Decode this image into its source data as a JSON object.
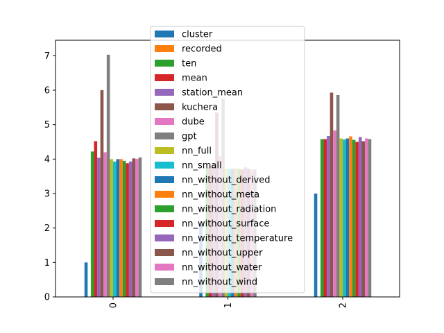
{
  "chart_data": {
    "type": "bar",
    "title": "",
    "xlabel": "",
    "ylabel": "",
    "categories": [
      "0",
      "1",
      "2"
    ],
    "ylim": [
      0,
      7.45
    ],
    "yticks": [
      0,
      1,
      2,
      3,
      4,
      5,
      6,
      7
    ],
    "grid": false,
    "legend_position": "upper center",
    "series": [
      {
        "name": "cluster",
        "color": "#1f77b4",
        "values": [
          1.0,
          2.15,
          3.0
        ]
      },
      {
        "name": "recorded",
        "color": "#ff7f0e",
        "values": [
          0,
          0,
          0
        ]
      },
      {
        "name": "ten",
        "color": "#2ca02c",
        "values": [
          4.22,
          3.75,
          4.58
        ]
      },
      {
        "name": "mean",
        "color": "#d62728",
        "values": [
          4.52,
          3.8,
          4.58
        ]
      },
      {
        "name": "station_mean",
        "color": "#9467bd",
        "values": [
          4.04,
          3.8,
          4.67
        ]
      },
      {
        "name": "kuchera",
        "color": "#8c564b",
        "values": [
          6.0,
          5.35,
          5.93
        ]
      },
      {
        "name": "dube",
        "color": "#e377c2",
        "values": [
          4.2,
          4.08,
          4.83
        ]
      },
      {
        "name": "gpt",
        "color": "#7f7f7f",
        "values": [
          7.03,
          5.75,
          5.86
        ]
      },
      {
        "name": "nn_full",
        "color": "#bcbd22",
        "values": [
          4.0,
          3.72,
          4.6
        ]
      },
      {
        "name": "nn_small",
        "color": "#17becf",
        "values": [
          3.93,
          3.72,
          4.57
        ]
      },
      {
        "name": "nn_without_derived",
        "color": "#1f77b4",
        "values": [
          4.0,
          3.72,
          4.6
        ]
      },
      {
        "name": "nn_without_meta",
        "color": "#ff7f0e",
        "values": [
          4.0,
          3.73,
          4.66
        ]
      },
      {
        "name": "nn_without_radiation",
        "color": "#2ca02c",
        "values": [
          3.95,
          3.72,
          4.56
        ]
      },
      {
        "name": "nn_without_surface",
        "color": "#d62728",
        "values": [
          3.88,
          3.7,
          4.5
        ]
      },
      {
        "name": "nn_without_temperature",
        "color": "#9467bd",
        "values": [
          3.93,
          3.76,
          4.64
        ]
      },
      {
        "name": "nn_without_upper",
        "color": "#8c564b",
        "values": [
          4.02,
          3.72,
          4.52
        ]
      },
      {
        "name": "nn_without_water",
        "color": "#e377c2",
        "values": [
          4.01,
          3.7,
          4.6
        ]
      },
      {
        "name": "nn_without_wind",
        "color": "#7f7f7f",
        "values": [
          4.05,
          3.7,
          4.58
        ]
      }
    ]
  }
}
